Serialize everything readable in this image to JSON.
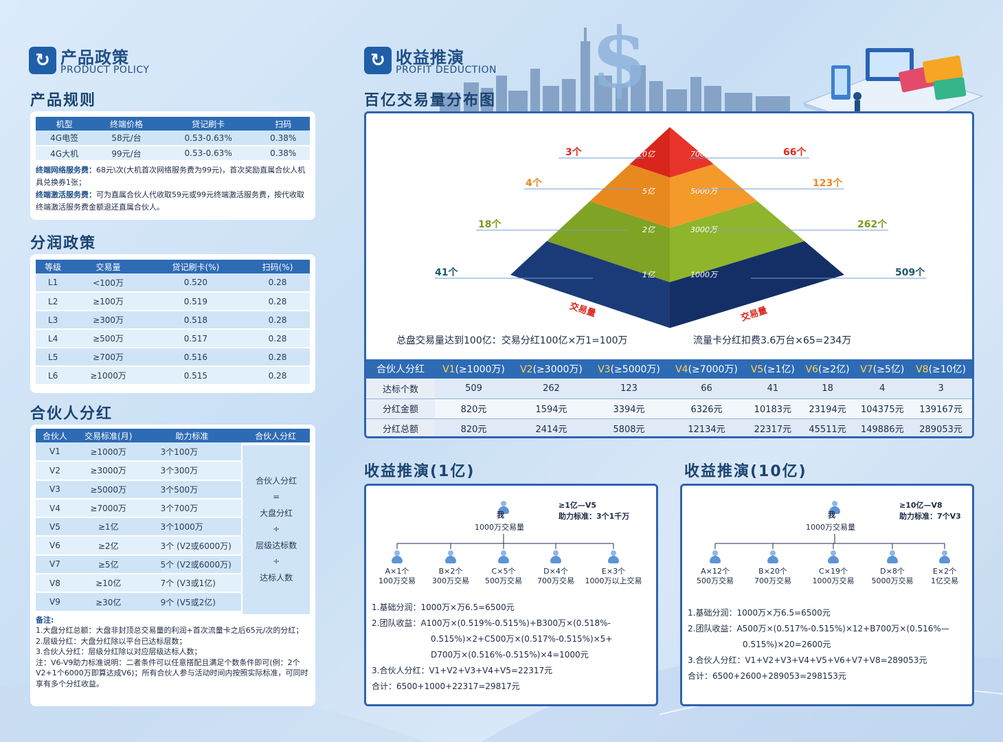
{
  "left_header": {
    "cn": "产品政策",
    "en": "PRODUCT POLICY",
    "icon": "policy-logo-icon"
  },
  "right_header": {
    "cn": "收益推演",
    "en": "PROFIT DEDUCTION",
    "icon": "deduction-logo-icon"
  },
  "product_rules": {
    "title": "产品规则",
    "headers": [
      "机型",
      "终端价格",
      "贷记刷卡",
      "扫码"
    ],
    "rows": [
      [
        "4G电签",
        "58元/台",
        "0.53-0.63%",
        "0.38%"
      ],
      [
        "4G大机",
        "99元/台",
        "0.53-0.63%",
        "0.38%"
      ]
    ],
    "note1_label": "终端网络服务费：",
    "note1_text": "68元\\次(大机首次网络服务费为99元)，首次奖励直属合伙人机具兑换券1张；",
    "note2_label": "终端激活服务费：",
    "note2_text": "可为直属合伙人代收取59元或99元终端激活服务费，按代收取终端激活服务费金额退还直属合伙人。"
  },
  "profit_policy": {
    "title": "分润政策",
    "headers": [
      "等级",
      "交易量",
      "贷记刷卡(%)",
      "扫码(%)"
    ],
    "rows": [
      [
        "L1",
        "<100万",
        "0.520",
        "0.28"
      ],
      [
        "L2",
        "≥100万",
        "0.519",
        "0.28"
      ],
      [
        "L3",
        "≥300万",
        "0.518",
        "0.28"
      ],
      [
        "L4",
        "≥500万",
        "0.517",
        "0.28"
      ],
      [
        "L5",
        "≥700万",
        "0.516",
        "0.28"
      ],
      [
        "L6",
        "≥1000万",
        "0.515",
        "0.28"
      ]
    ]
  },
  "partner_dividend": {
    "title": "合伙人分红",
    "headers": [
      "合伙人",
      "交易标准(月)",
      "助力标准",
      "合伙人分红"
    ],
    "rows": [
      [
        "V1",
        "≥1000万",
        "3个100万"
      ],
      [
        "V2",
        "≥3000万",
        "3个300万"
      ],
      [
        "V3",
        "≥5000万",
        "3个500万"
      ],
      [
        "V4",
        "≥7000万",
        "3个700万"
      ],
      [
        "V5",
        "≥1亿",
        "3个1000万"
      ],
      [
        "V6",
        "≥2亿",
        "3个 (V2或6000万)"
      ],
      [
        "V7",
        "≥5亿",
        "5个 (V2或6000万)"
      ],
      [
        "V8",
        "≥10亿",
        "7个 (V3或1亿)"
      ],
      [
        "V9",
        "≥30亿",
        "9个 (V5或2亿)"
      ]
    ],
    "formula": [
      "合伙人分红",
      "=",
      "大盘分红",
      "÷",
      "层级达标数",
      "÷",
      "达标人数"
    ],
    "notes": [
      "备注:",
      "1.大盘分红总额：大盘非封顶总交易量的利润+首次流量卡之后65元/次的分红；",
      "2.层级分红：大盘分红除以平台已达标层数；",
      "3.合伙人分红：层级分红除以对应层级达标人数；",
      "注：V6-V9助力标准说明：二者条件可以任意搭配且满足个数条件即可(例：2个V2+1个6000万即算达成V6)；所有合伙人参与活动时间内按照实际标准，可同时享有多个分红收益。"
    ]
  },
  "pyramid": {
    "title": "百亿交易量分布图",
    "layers": [
      {
        "left_label": "10亿",
        "right_label": "7000万",
        "left_count": "3个",
        "right_count": "66个",
        "color_left": "#d9261c",
        "color_right": "#e8332a",
        "count_color": "#e02a1f"
      },
      {
        "left_label": "5亿",
        "right_label": "5000万",
        "left_count": "4个",
        "right_count": "123个",
        "color_left": "#e8891f",
        "color_right": "#f39a2a",
        "count_color": "#e8891f"
      },
      {
        "left_label": "2亿",
        "right_label": "3000万",
        "left_count": "18个",
        "right_count": "262个",
        "color_left": "#7fa324",
        "color_right": "#8fb52c",
        "count_color": "#7a9a1e"
      },
      {
        "left_label": "1亿",
        "right_label": "1000万",
        "left_count": "41个",
        "right_count": "509个",
        "color_left": "#1b3b78",
        "color_right": "#142f66",
        "count_color": "#1d5a6a"
      }
    ],
    "base_left": "交易量",
    "base_right": "交易量",
    "summary_left": "总盘交易量达到100亿：交易分红100亿×万1=100万",
    "summary_right": "流量卡分红扣费3.6万台×65=234万"
  },
  "dividend_table": {
    "corner": "合伙人分红",
    "levels": [
      {
        "v": "V1",
        "c": "(≥1000万)"
      },
      {
        "v": "V2",
        "c": "(≥3000万)"
      },
      {
        "v": "V3",
        "c": "(≥5000万)"
      },
      {
        "v": "V4",
        "c": "(≥7000万)"
      },
      {
        "v": "V5",
        "c": "(≥1亿)"
      },
      {
        "v": "V6",
        "c": "(≥2亿)"
      },
      {
        "v": "V7",
        "c": "(≥5亿)"
      },
      {
        "v": "V8",
        "c": "(≥10亿)"
      }
    ],
    "rows": [
      {
        "label": "达标个数",
        "values": [
          "509",
          "262",
          "123",
          "66",
          "41",
          "18",
          "4",
          "3"
        ]
      },
      {
        "label": "分红金额",
        "values": [
          "820元",
          "1594元",
          "3394元",
          "6326元",
          "10183元",
          "23194元",
          "104375元",
          "139167元"
        ]
      },
      {
        "label": "分红总额",
        "values": [
          "820元",
          "2414元",
          "5808元",
          "12134元",
          "22317元",
          "45511元",
          "149886元",
          "289053元"
        ]
      }
    ]
  },
  "deduction_1": {
    "title": "收益推演(1亿)",
    "me": "我",
    "me_volume": "1000万交易量",
    "level_line1": "≥1亿—V5",
    "level_line2": "助力标准：3个1千万",
    "children": [
      {
        "name": "A×1个",
        "volume": "100万交易"
      },
      {
        "name": "B×2个",
        "volume": "300万交易"
      },
      {
        "name": "C×5个",
        "volume": "500万交易"
      },
      {
        "name": "D×4个",
        "volume": "700万交易"
      },
      {
        "name": "E×3个",
        "volume": "1000万以上交易"
      }
    ],
    "lines": [
      "1.基础分润：1000万×万6.5=6500元",
      "2.团队收益：A100万×(0.519%-0.515%)+B300万×(0.518%-",
      "0.515%)×2+C500万×(0.517%-0.515%)×5+",
      "D700万×(0.516%-0.515%)×4=1000元",
      "3.合伙人分红：V1+V2+V3+V4+V5=22317元",
      "合计：6500+1000+22317=29817元"
    ]
  },
  "deduction_10": {
    "title": "收益推演(10亿)",
    "me": "我",
    "me_volume": "1000万交易量",
    "level_line1": "≥10亿—V8",
    "level_line2": "助力标准：7个V3",
    "children": [
      {
        "name": "A×12个",
        "volume": "500万交易"
      },
      {
        "name": "B×20个",
        "volume": "700万交易"
      },
      {
        "name": "C×19个",
        "volume": "1000万交易"
      },
      {
        "name": "D×8个",
        "volume": "5000万交易"
      },
      {
        "name": "E×2个",
        "volume": "1亿交易"
      }
    ],
    "lines": [
      "1.基础分润：1000万×万6.5=6500元",
      "2.团队收益：A500万×(0.517%-0.515%)×12+B700万×(0.516%—",
      "0.515%)×20=2600元",
      "3.合伙人分红：V1+V2+V3+V4+V5+V6+V7+V8=289053元",
      "合计：6500+2600+289053=298153元"
    ]
  },
  "decor": {
    "dollar": "$"
  }
}
